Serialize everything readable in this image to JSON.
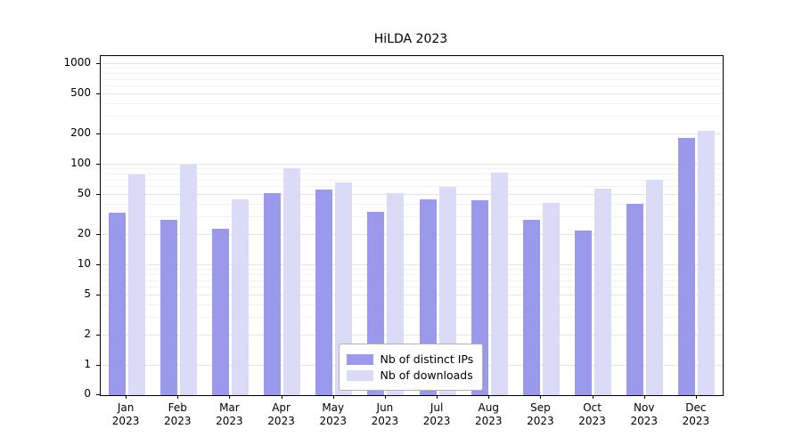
{
  "title": "HiLDA 2023",
  "chart_data": {
    "type": "bar",
    "scale": "symlog",
    "title": "HiLDA 2023",
    "year": "2023",
    "categories": [
      "Jan",
      "Feb",
      "Mar",
      "Apr",
      "May",
      "Jun",
      "Jul",
      "Aug",
      "Sep",
      "Oct",
      "Nov",
      "Dec"
    ],
    "series": [
      {
        "name": "Nb of distinct IPs",
        "color": "#9b99ec",
        "values": [
          33,
          28,
          23,
          52,
          57,
          34,
          45,
          44,
          28,
          22,
          41,
          185
        ]
      },
      {
        "name": "Nb of downloads",
        "color": "#dcdbf7",
        "values": [
          80,
          100,
          45,
          92,
          67,
          52,
          60,
          83,
          42,
          58,
          71,
          215
        ]
      }
    ],
    "yticks": [
      0,
      1,
      2,
      5,
      10,
      20,
      50,
      100,
      200,
      500,
      1000
    ],
    "ylim": [
      0,
      1300
    ],
    "grid": true,
    "legend_position": "lower center"
  }
}
